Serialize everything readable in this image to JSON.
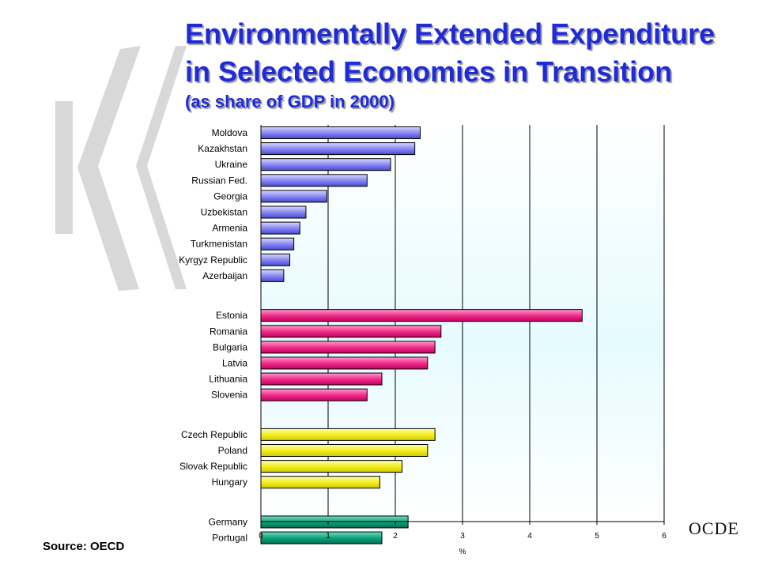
{
  "header": {
    "title_line1": "Environmentally Extended Expenditure",
    "title_line2": "in Selected Economies in Transition",
    "subtitle": "(as share of GDP in 2000)"
  },
  "footer": {
    "source": "Source: OECD",
    "brand": "OCDE"
  },
  "colors": {
    "title": "#1f2bd6",
    "group_cis": "#8080f0",
    "group_baltic_balkan": "#f02888",
    "group_central_europe": "#f0f020",
    "group_eu": "#0aa078",
    "logo": "#d8d8d8"
  },
  "chart_data": {
    "type": "bar",
    "orientation": "horizontal",
    "xlabel": "%",
    "xlim": [
      0,
      6
    ],
    "xticks": [
      0,
      1,
      2,
      3,
      4,
      5,
      6
    ],
    "grid": "vertical lines",
    "groups": [
      {
        "color": "#8080f0",
        "categories": [
          "Moldova",
          "Kazakhstan",
          "Ukraine",
          "Russian Fed.",
          "Georgia",
          "Uzbekistan",
          "Armenia",
          "Turkmenistan",
          "Kyrgyz Republic",
          "Azerbaijan"
        ],
        "values": [
          2.37,
          2.29,
          1.93,
          1.58,
          0.98,
          0.67,
          0.58,
          0.49,
          0.43,
          0.34
        ]
      },
      {
        "color": "#f02888",
        "categories": [
          "Estonia",
          "Romania",
          "Bulgaria",
          "Latvia",
          "Lithuania",
          "Slovenia"
        ],
        "values": [
          4.78,
          2.68,
          2.59,
          2.48,
          1.8,
          1.58
        ]
      },
      {
        "color": "#f0f020",
        "categories": [
          "Czech Republic",
          "Poland",
          "Slovak Republic",
          "Hungary"
        ],
        "values": [
          2.59,
          2.48,
          2.1,
          1.77
        ]
      },
      {
        "color": "#0aa078",
        "categories": [
          "Germany",
          "Portugal"
        ],
        "values": [
          2.19,
          1.8
        ]
      }
    ]
  }
}
